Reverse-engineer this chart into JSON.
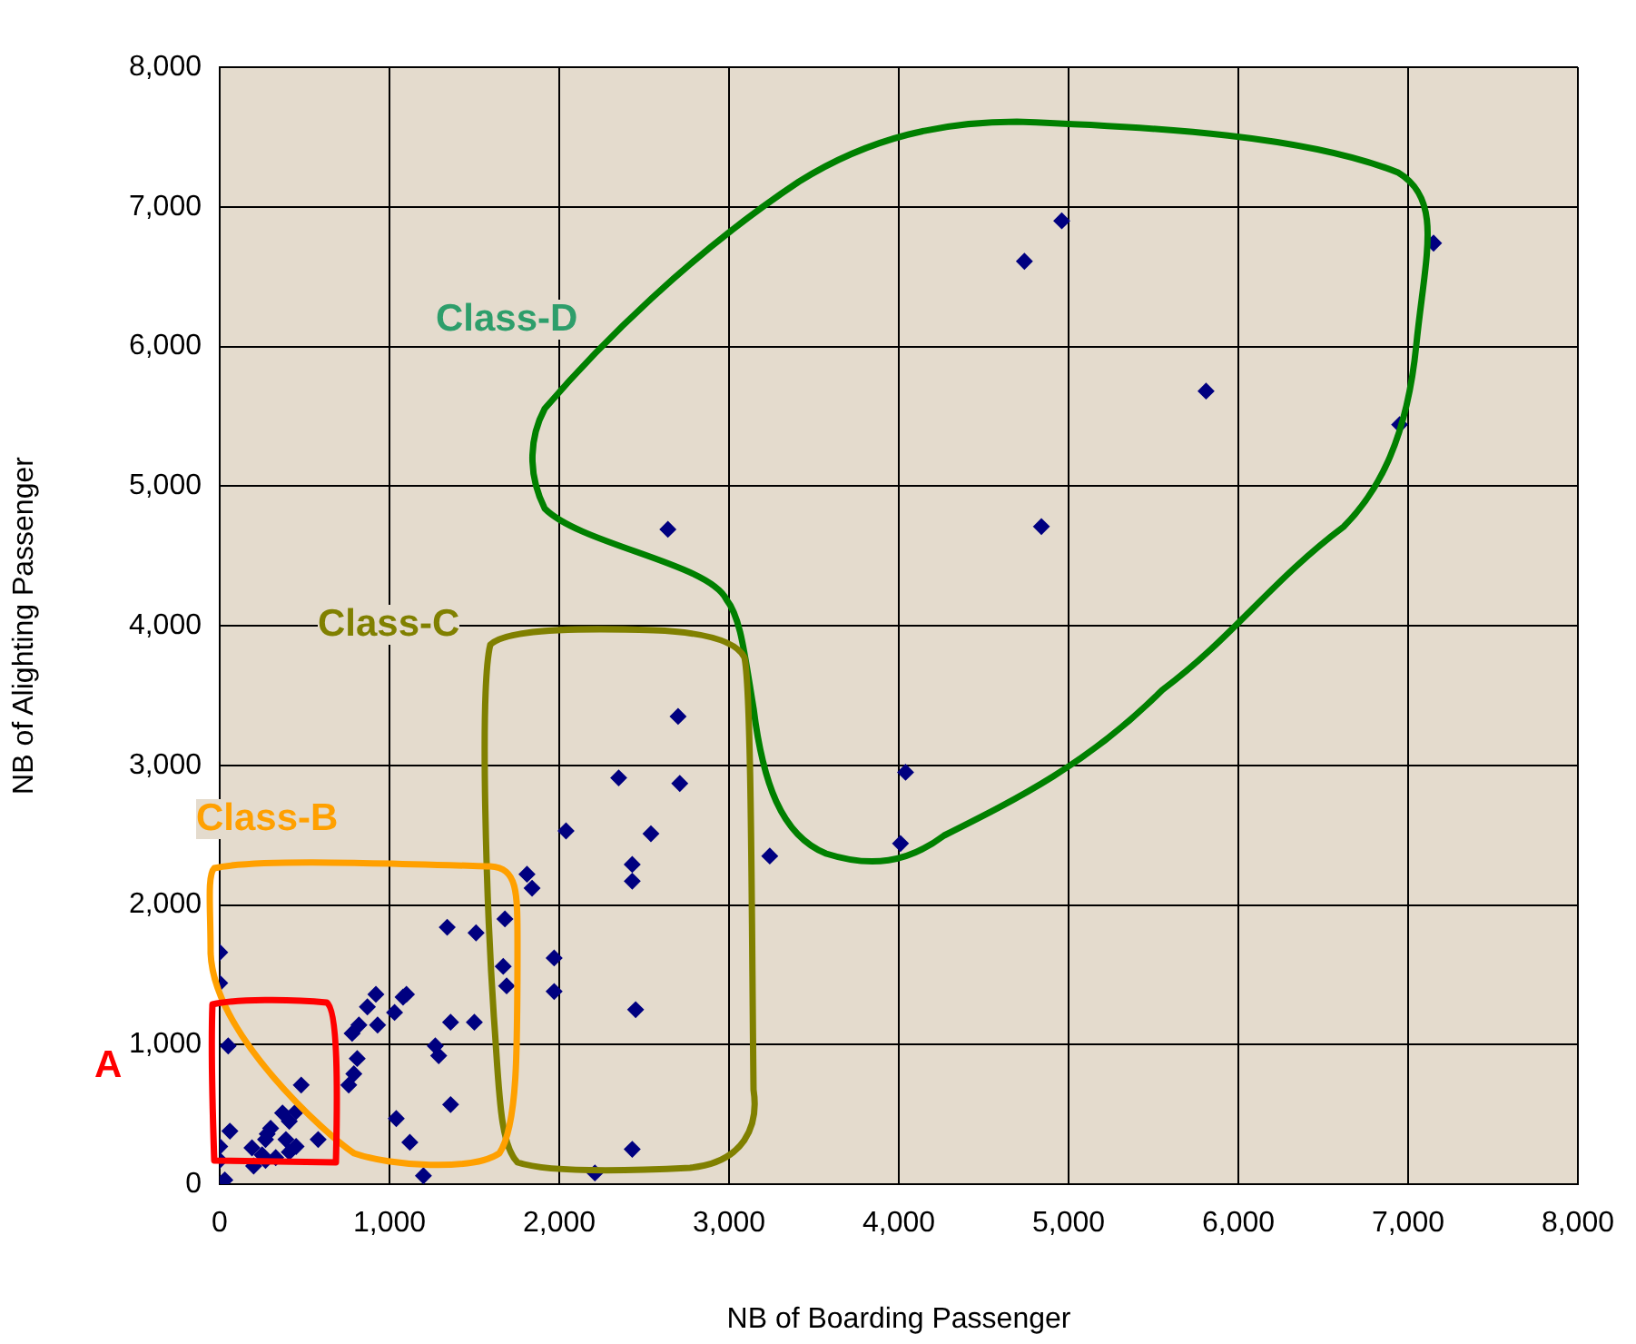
{
  "chart_data": {
    "type": "scatter",
    "xlabel": "NB of Boarding Passenger",
    "ylabel": "NB of Alighting Passenger",
    "x": [
      0,
      0,
      50,
      0,
      60,
      30,
      0,
      480,
      450,
      370,
      410,
      300,
      280,
      270,
      390,
      580,
      450,
      410,
      190,
      250,
      200,
      330,
      270,
      760,
      790,
      810,
      780,
      820,
      870,
      920,
      930,
      1030,
      1080,
      1100,
      1270,
      1290,
      1360,
      1500,
      1040,
      1120,
      1200,
      1360,
      1340,
      1510,
      1680,
      1670,
      1690,
      1810,
      1840,
      1970,
      1970,
      2040,
      2700,
      2350,
      2710,
      2540,
      2430,
      2430,
      3240,
      4040,
      4010,
      2450,
      2430,
      2210,
      4960,
      4740,
      7150,
      5810,
      6950,
      4840,
      2640
    ],
    "series": [
      {
        "color": "#000080",
        "values": [
          1660,
          1440,
          990,
          270,
          380,
          30,
          170,
          710,
          520,
          510,
          450,
          400,
          360,
          320,
          320,
          320,
          270,
          230,
          260,
          210,
          130,
          190,
          170,
          710,
          790,
          900,
          1080,
          1140,
          1270,
          1360,
          1140,
          1230,
          1340,
          1360,
          990,
          920,
          1160,
          1160,
          470,
          300,
          60,
          570,
          1840,
          1800,
          1900,
          1560,
          1420,
          2220,
          2120,
          1620,
          1380,
          2530,
          3350,
          2910,
          2870,
          2510,
          2290,
          2170,
          2350,
          2950,
          2440,
          1250,
          250,
          80,
          6900,
          6610,
          6740,
          5680,
          5440,
          4710,
          4690
        ]
      }
    ],
    "xlim": [
      0,
      8000
    ],
    "xticks": [
      {
        "value": 0,
        "label": "0"
      },
      {
        "value": 1000,
        "label": "1,000"
      },
      {
        "value": 2000,
        "label": "2,000"
      },
      {
        "value": 3000,
        "label": "3,000"
      },
      {
        "value": 4000,
        "label": "4,000"
      },
      {
        "value": 5000,
        "label": "5,000"
      },
      {
        "value": 6000,
        "label": "6,000"
      },
      {
        "value": 7000,
        "label": "7,000"
      },
      {
        "value": 8000,
        "label": "8,000"
      }
    ],
    "ylim": [
      0,
      8000
    ],
    "yticks": [
      {
        "value": 0,
        "label": "0"
      },
      {
        "value": 1000,
        "label": "1,000"
      },
      {
        "value": 2000,
        "label": "2,000"
      },
      {
        "value": 3000,
        "label": "3,000"
      },
      {
        "value": 4000,
        "label": "4,000"
      },
      {
        "value": 5000,
        "label": "5,000"
      },
      {
        "value": 6000,
        "label": "6,000"
      },
      {
        "value": 7000,
        "label": "7,000"
      },
      {
        "value": 8000,
        "label": "8,000"
      }
    ],
    "grid": true,
    "legend": false,
    "marker": "diamond",
    "annotations": [
      "Class-D",
      "Class-C",
      "Class-B",
      "A"
    ]
  }
}
